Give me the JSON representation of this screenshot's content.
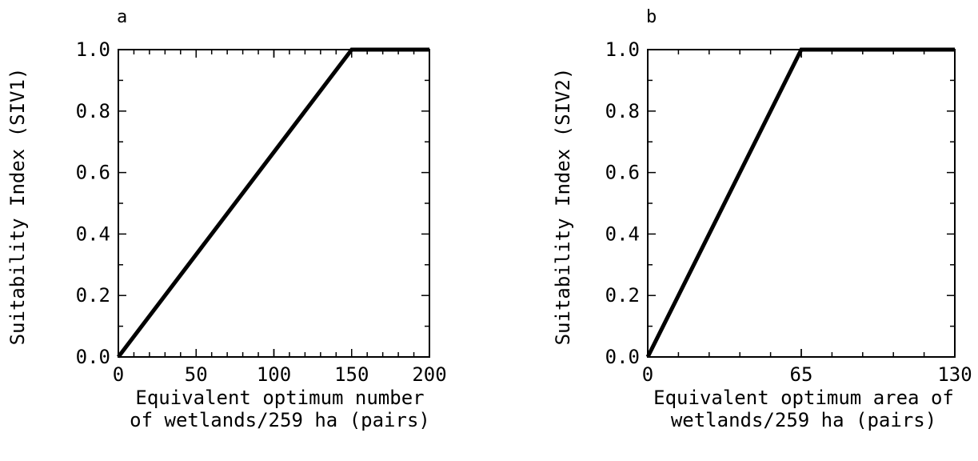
{
  "chart_data": [
    {
      "type": "line",
      "panel_label": "a",
      "xlabel_lines": [
        "Equivalent optimum number",
        "of wetlands/259 ha (pairs)"
      ],
      "ylabel": "Suitability Index (SIV1)",
      "xlim": [
        0,
        200
      ],
      "ylim": [
        0,
        1.0
      ],
      "x_ticks": [
        0,
        50,
        100,
        150,
        200
      ],
      "x_tick_labels": [
        "0",
        "50",
        "100",
        "150",
        "200"
      ],
      "y_ticks": [
        0.0,
        0.2,
        0.4,
        0.6,
        0.8,
        1.0
      ],
      "y_tick_labels": [
        "0.0",
        "0.2",
        "0.4",
        "0.6",
        "0.8",
        "1.0"
      ],
      "grid": false,
      "series": [
        {
          "x": [
            0,
            150,
            200
          ],
          "y": [
            0.0,
            1.0,
            1.0
          ]
        }
      ]
    },
    {
      "type": "line",
      "panel_label": "b",
      "xlabel_lines": [
        "Equivalent optimum area of",
        "wetlands/259 ha (pairs)"
      ],
      "ylabel": "Suitability Index (SIV2)",
      "xlim": [
        0,
        130
      ],
      "ylim": [
        0,
        1.0
      ],
      "x_ticks": [
        0,
        65,
        130
      ],
      "x_tick_labels": [
        "0",
        "65",
        "130"
      ],
      "y_ticks": [
        0.0,
        0.2,
        0.4,
        0.6,
        0.8,
        1.0
      ],
      "y_tick_labels": [
        "0.0",
        "0.2",
        "0.4",
        "0.6",
        "0.8",
        "1.0"
      ],
      "grid": false,
      "series": [
        {
          "x": [
            0,
            65,
            130
          ],
          "y": [
            0.0,
            1.0,
            1.0
          ]
        }
      ]
    }
  ]
}
